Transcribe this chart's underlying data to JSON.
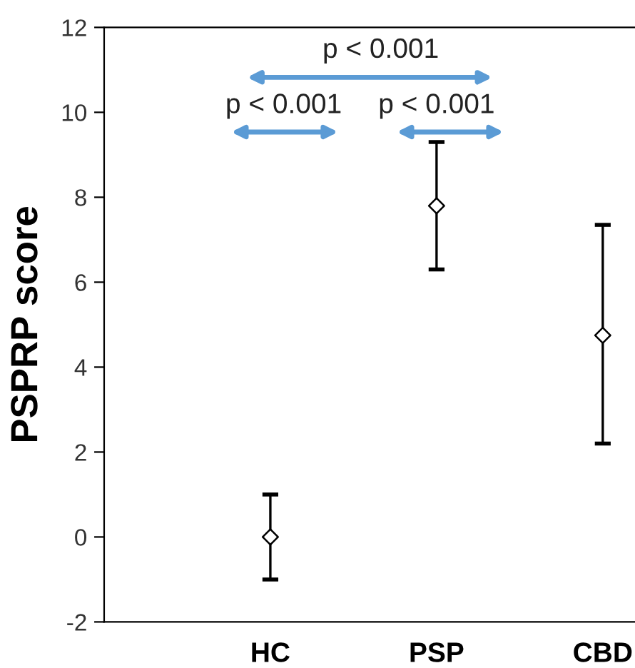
{
  "chart_data": {
    "type": "scatter",
    "ylabel": "PSPRP score",
    "categories": [
      "HC",
      "PSP",
      "CBD"
    ],
    "values": [
      0,
      7.8,
      4.75
    ],
    "errors": [
      [
        -1.0,
        1.0
      ],
      [
        6.3,
        9.3
      ],
      [
        2.2,
        7.35
      ]
    ],
    "color": "#000000",
    "marker": "diamond",
    "ylim": [
      -2,
      12
    ],
    "yticks": [
      -2,
      0,
      2,
      4,
      6,
      8,
      10,
      12
    ],
    "annotations": [
      "p < 0.001",
      "p < 0.001",
      "p < 0.001"
    ],
    "grid": false
  }
}
